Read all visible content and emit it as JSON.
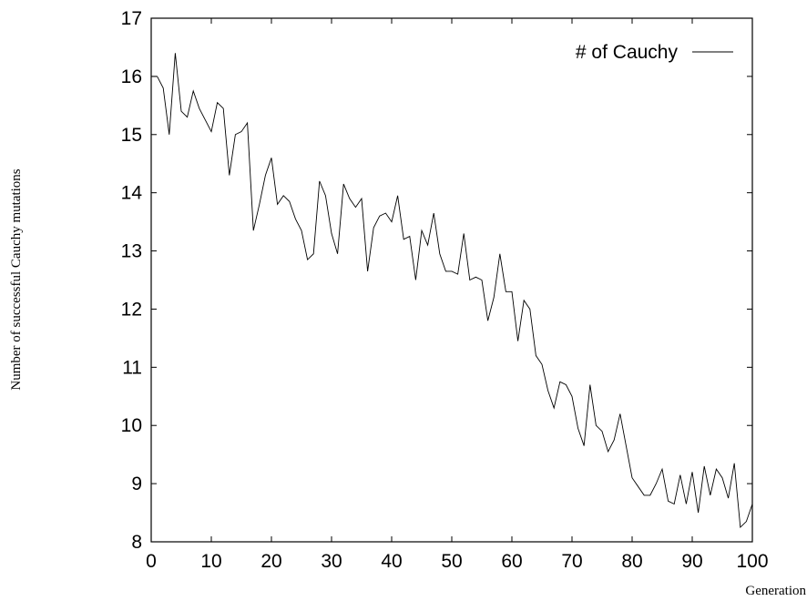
{
  "chart_data": {
    "type": "line",
    "title": "",
    "xlabel": "Generation",
    "ylabel": "Number of successful Cauchy mutations",
    "xlim": [
      0,
      100
    ],
    "ylim": [
      8,
      17
    ],
    "x_ticks": [
      "0",
      "10",
      "20",
      "30",
      "40",
      "50",
      "60",
      "70",
      "80",
      "90",
      "100"
    ],
    "y_ticks": [
      "8",
      "9",
      "10",
      "11",
      "12",
      "13",
      "14",
      "15",
      "16",
      "17"
    ],
    "grid": false,
    "legend_position": "top-right",
    "series": [
      {
        "name": "# of Cauchy",
        "color": "#000000",
        "x": [
          0,
          1,
          2,
          3,
          4,
          5,
          6,
          7,
          8,
          9,
          10,
          11,
          12,
          13,
          14,
          15,
          16,
          17,
          18,
          19,
          20,
          21,
          22,
          23,
          24,
          25,
          26,
          27,
          28,
          29,
          30,
          31,
          32,
          33,
          34,
          35,
          36,
          37,
          38,
          39,
          40,
          41,
          42,
          43,
          44,
          45,
          46,
          47,
          48,
          49,
          50,
          51,
          52,
          53,
          54,
          55,
          56,
          57,
          58,
          59,
          60,
          61,
          62,
          63,
          64,
          65,
          66,
          67,
          68,
          69,
          70,
          71,
          72,
          73,
          74,
          75,
          76,
          77,
          78,
          79,
          80,
          81,
          82,
          83,
          84,
          85,
          86,
          87,
          88,
          89,
          90,
          91,
          92,
          93,
          94,
          95,
          96,
          97,
          98,
          99,
          100
        ],
        "values": [
          16.0,
          16.0,
          15.8,
          15.0,
          16.4,
          15.4,
          15.3,
          15.75,
          15.45,
          15.25,
          15.05,
          15.55,
          15.45,
          14.3,
          15.0,
          15.05,
          15.2,
          13.35,
          13.8,
          14.3,
          14.6,
          13.8,
          13.95,
          13.85,
          13.55,
          13.35,
          12.85,
          12.95,
          14.2,
          13.95,
          13.3,
          12.95,
          14.15,
          13.9,
          13.75,
          13.9,
          12.65,
          13.4,
          13.6,
          13.65,
          13.5,
          13.95,
          13.2,
          13.25,
          12.5,
          13.35,
          13.1,
          13.65,
          12.95,
          12.65,
          12.65,
          12.6,
          13.3,
          12.5,
          12.55,
          12.5,
          11.8,
          12.2,
          12.95,
          12.3,
          12.3,
          11.45,
          12.15,
          12.0,
          11.2,
          11.05,
          10.6,
          10.3,
          10.75,
          10.7,
          10.5,
          9.95,
          9.65,
          10.7,
          10.0,
          9.9,
          9.55,
          9.75,
          10.2,
          9.65,
          9.1,
          8.95,
          8.8,
          8.8,
          9.0,
          9.25,
          8.7,
          8.65,
          9.15,
          8.65,
          9.2,
          8.5,
          9.3,
          8.8,
          9.25,
          9.1,
          8.75,
          9.35,
          8.25,
          8.35,
          8.65
        ]
      }
    ]
  }
}
